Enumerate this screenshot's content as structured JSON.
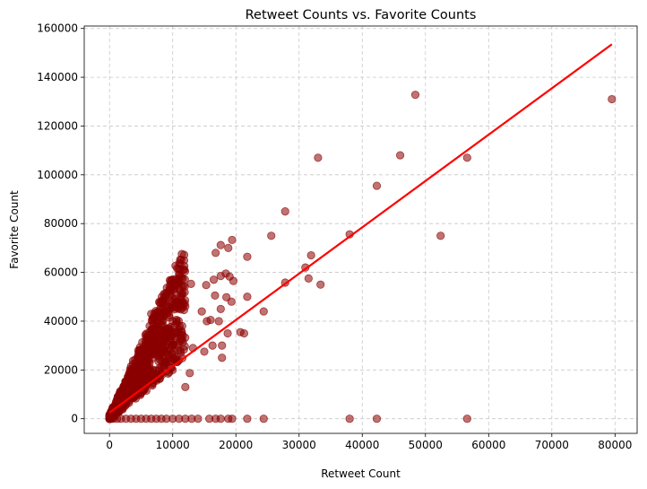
{
  "chart_data": {
    "type": "scatter",
    "title": "Retweet Counts vs. Favorite Counts",
    "xlabel": "Retweet Count",
    "ylabel": "Favorite Count",
    "xlim": [
      -4000,
      83500
    ],
    "ylim": [
      -6000,
      161000
    ],
    "xticks": [
      0,
      10000,
      20000,
      30000,
      40000,
      50000,
      60000,
      70000,
      80000
    ],
    "yticks": [
      0,
      20000,
      40000,
      60000,
      80000,
      100000,
      120000,
      140000,
      160000
    ],
    "xtick_labels": [
      "0",
      "10000",
      "20000",
      "30000",
      "40000",
      "50000",
      "60000",
      "70000",
      "80000"
    ],
    "ytick_labels": [
      "0",
      "20000",
      "40000",
      "60000",
      "80000",
      "100000",
      "120000",
      "140000",
      "160000"
    ],
    "grid": true,
    "colors": {
      "points": "#8b0000",
      "trend": "#ff0000",
      "grid": "#c8c8c8"
    },
    "trend_line": {
      "x": [
        0,
        79500
      ],
      "y": [
        2500,
        153500
      ]
    },
    "series": [
      {
        "points": [
          [
            79500,
            131000
          ],
          [
            48400,
            132800
          ],
          [
            46000,
            108000
          ],
          [
            56600,
            107000
          ],
          [
            33000,
            107000
          ],
          [
            42300,
            95500
          ],
          [
            38000,
            75600
          ],
          [
            52400,
            75000
          ],
          [
            27800,
            85000
          ],
          [
            25600,
            75000
          ],
          [
            31900,
            67000
          ],
          [
            31000,
            62000
          ],
          [
            31500,
            57500
          ],
          [
            33400,
            55000
          ],
          [
            27800,
            55800
          ],
          [
            24400,
            44000
          ],
          [
            21800,
            50000
          ],
          [
            21800,
            66400
          ],
          [
            19400,
            73300
          ],
          [
            17600,
            71200
          ],
          [
            18800,
            70000
          ],
          [
            16800,
            68000
          ],
          [
            15300,
            54800
          ],
          [
            16500,
            57000
          ],
          [
            17600,
            58500
          ],
          [
            18400,
            59500
          ],
          [
            19000,
            58300
          ],
          [
            19600,
            56500
          ],
          [
            18500,
            49800
          ],
          [
            19300,
            48000
          ],
          [
            17600,
            45000
          ],
          [
            16700,
            50500
          ],
          [
            14600,
            44000
          ],
          [
            12900,
            55300
          ],
          [
            11300,
            51500
          ],
          [
            11900,
            47200
          ],
          [
            12000,
            46100
          ],
          [
            15400,
            40000
          ],
          [
            16000,
            40500
          ],
          [
            17300,
            40000
          ],
          [
            18700,
            35000
          ],
          [
            21300,
            35000
          ],
          [
            20700,
            35500
          ],
          [
            17800,
            30000
          ],
          [
            17800,
            25000
          ],
          [
            16300,
            30000
          ],
          [
            15000,
            27500
          ],
          [
            13200,
            29000
          ],
          [
            12700,
            18700
          ],
          [
            12000,
            13000
          ],
          [
            10000,
            40000
          ],
          [
            9500,
            45000
          ],
          [
            8200,
            41000
          ],
          [
            7800,
            43000
          ],
          [
            6600,
            43000
          ],
          [
            9800,
            34000
          ],
          [
            10700,
            30000
          ],
          [
            9000,
            32000
          ],
          [
            11500,
            38000
          ],
          [
            10000,
            20000
          ],
          [
            56600,
            0
          ],
          [
            42300,
            0
          ],
          [
            38000,
            0
          ],
          [
            24400,
            0
          ],
          [
            21800,
            0
          ],
          [
            19400,
            0
          ],
          [
            18800,
            0
          ],
          [
            17600,
            0
          ],
          [
            16800,
            0
          ],
          [
            15800,
            0
          ],
          [
            14000,
            0
          ],
          [
            13000,
            0
          ],
          [
            12000,
            0
          ],
          [
            11000,
            0
          ],
          [
            10000,
            0
          ],
          [
            9000,
            0
          ],
          [
            8200,
            0
          ],
          [
            7400,
            0
          ],
          [
            6600,
            0
          ],
          [
            5800,
            0
          ],
          [
            5000,
            0
          ],
          [
            4200,
            0
          ],
          [
            3400,
            0
          ],
          [
            2600,
            0
          ],
          [
            1800,
            0
          ],
          [
            1200,
            0
          ],
          [
            600,
            0
          ],
          [
            200,
            0
          ]
        ],
        "dense_cluster": {
          "x_range": [
            0,
            12000
          ],
          "count": 950,
          "slope_low": 2.0,
          "slope_high": 6.0,
          "offset": 600
        }
      }
    ]
  }
}
